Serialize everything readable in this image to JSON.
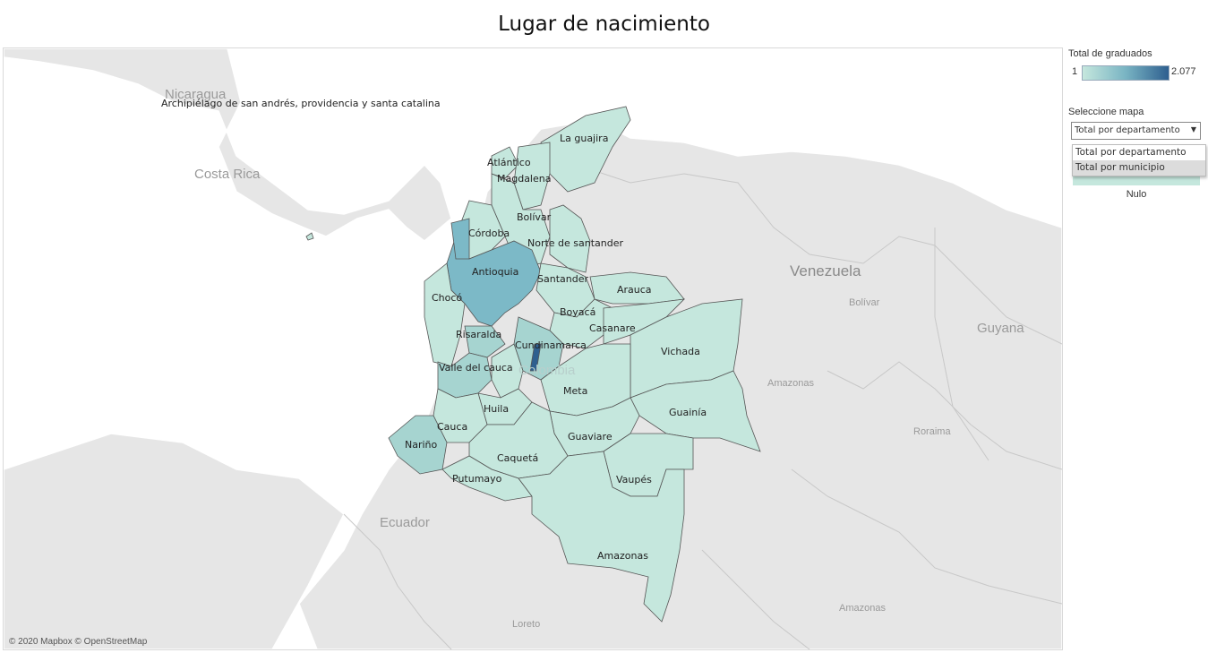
{
  "title": "Lugar de nacimiento",
  "legend": {
    "title": "Total de graduados",
    "min": "1",
    "max": "2.077",
    "null_label": "Nulo",
    "colors": {
      "low": "#c5e7dd",
      "mid": "#79b4c3",
      "high": "#2e5f8f"
    }
  },
  "selector": {
    "label": "Seleccione mapa",
    "current": "Total por departamento",
    "options": [
      "Total por departamento",
      "Total por municipio"
    ]
  },
  "attribution": "© 2020 Mapbox © OpenStreetMap",
  "background_labels": {
    "nicaragua": "Nicaragua",
    "costa_rica": "Costa Rica",
    "venezuela": "Venezuela",
    "guyana": "Guyana",
    "ecuador": "Ecuador",
    "colombia": "Colombia",
    "bolivar_ve": "Bolívar",
    "amazonas_ve": "Amazonas",
    "roraima": "Roraima",
    "amazonas_br": "Amazonas",
    "loreto": "Loreto"
  },
  "departments": {
    "san_andres": "Archipiélago de san andrés, providencia y santa catalina",
    "la_guajira": "La guajira",
    "atlantico": "Atlántico",
    "magdalena": "Magdalena",
    "bolivar": "Bolívar",
    "cordoba": "Córdoba",
    "norte_santander": "Norte de santander",
    "antioquia": "Antioquia",
    "santander": "Santander",
    "arauca": "Arauca",
    "choco": "Chocó",
    "boyaca": "Boyacá",
    "casanare": "Casanare",
    "risaralda": "Risaralda",
    "cundinamarca": "Cundinamarca",
    "vichada": "Vichada",
    "valle": "Valle del cauca",
    "meta": "Meta",
    "huila": "Huila",
    "guainia": "Guainía",
    "cauca": "Cauca",
    "guaviare": "Guaviare",
    "narino": "Nariño",
    "caqueta": "Caquetá",
    "putumayo": "Putumayo",
    "vaupes": "Vaupés",
    "amazonas": "Amazonas"
  }
}
